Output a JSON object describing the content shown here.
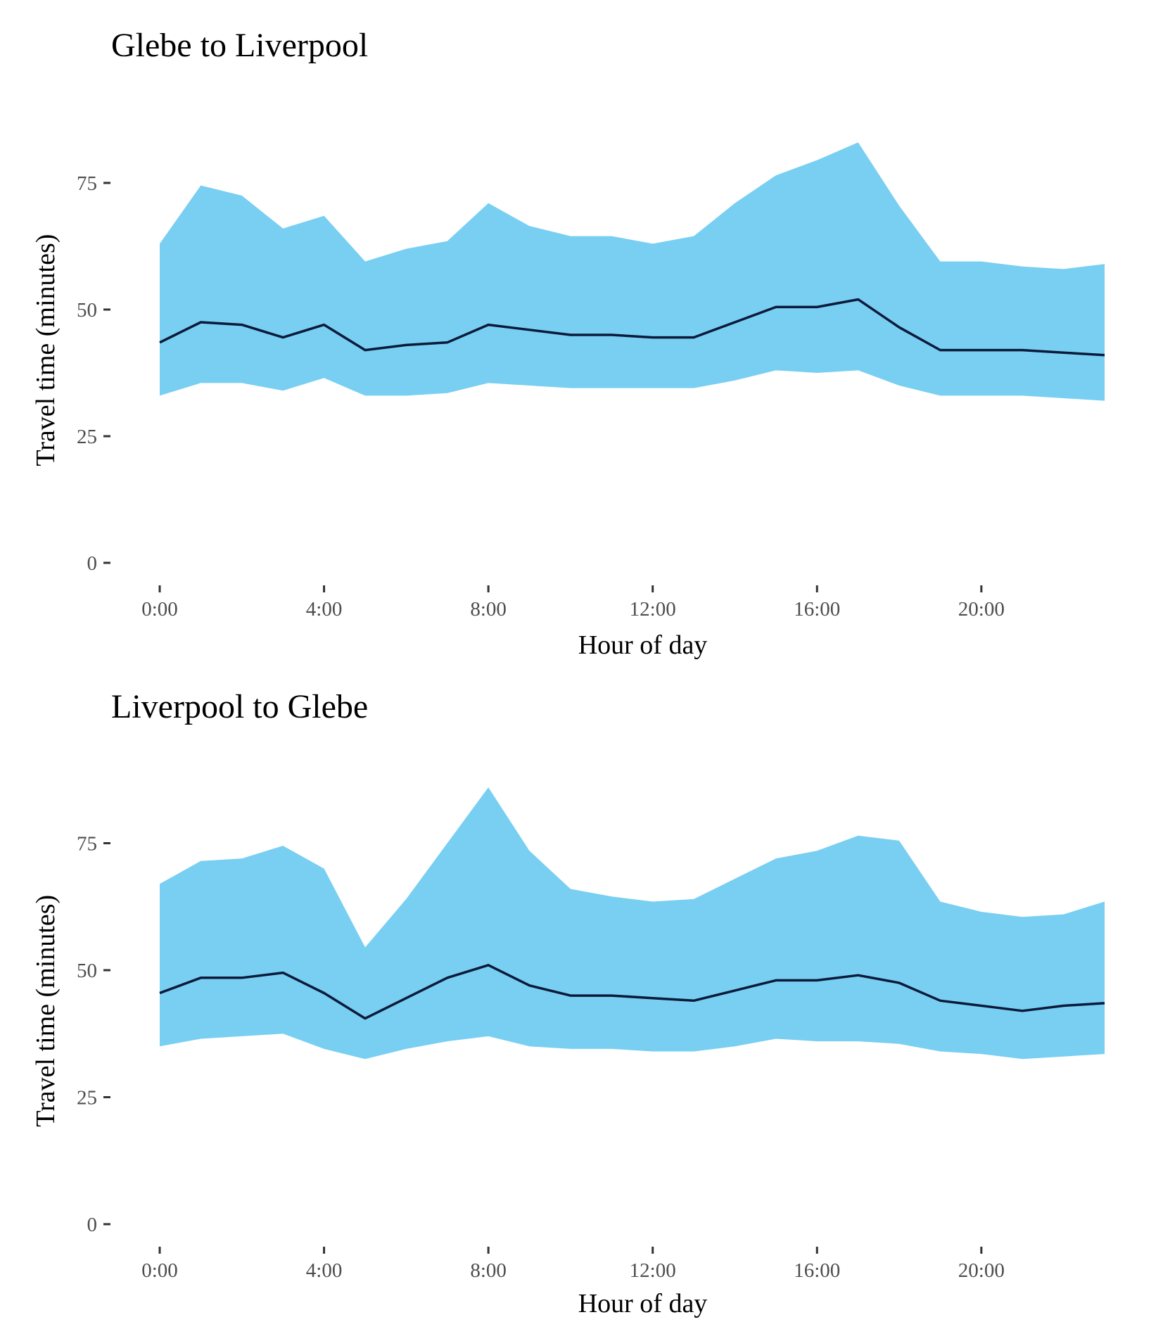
{
  "colors": {
    "band": "#78cff2",
    "line": "#0b1a3a",
    "tick": "#333333",
    "tick_label": "#4d4d4d"
  },
  "chart_data": [
    {
      "type": "area",
      "title": "Glebe to Liverpool",
      "xlabel": "Hour of day",
      "ylabel": "Travel time (minutes)",
      "x_ticks": [
        "0:00",
        "4:00",
        "8:00",
        "12:00",
        "16:00",
        "20:00"
      ],
      "y_ticks": [
        "0",
        "25",
        "50",
        "75"
      ],
      "xlim": [
        0,
        23
      ],
      "ylim": [
        0,
        85
      ],
      "grid": false,
      "x": [
        0,
        1,
        2,
        3,
        4,
        5,
        6,
        7,
        8,
        9,
        10,
        11,
        12,
        13,
        14,
        15,
        16,
        17,
        18,
        19,
        20,
        21,
        22,
        23
      ],
      "series": [
        {
          "role": "upper",
          "values": [
            63,
            74.5,
            72.5,
            66,
            68.5,
            59.5,
            62,
            63.5,
            71,
            66.5,
            64.5,
            64.5,
            63,
            64.5,
            71,
            76.5,
            79.5,
            83,
            70.5,
            59.5,
            59.5,
            58.5,
            58,
            59
          ]
        },
        {
          "role": "median",
          "values": [
            43.5,
            47.5,
            47,
            44.5,
            47,
            42,
            43,
            43.5,
            47,
            46,
            45,
            45,
            44.5,
            44.5,
            47.5,
            50.5,
            50.5,
            52,
            46.5,
            42,
            42,
            42,
            41.5,
            41
          ]
        },
        {
          "role": "lower",
          "values": [
            33,
            35.5,
            35.5,
            34,
            36.5,
            33,
            33,
            33.5,
            35.5,
            35,
            34.5,
            34.5,
            34.5,
            34.5,
            36,
            38,
            37.5,
            38,
            35,
            33,
            33,
            33,
            32.5,
            32
          ]
        }
      ]
    },
    {
      "type": "area",
      "title": "Liverpool to Glebe",
      "xlabel": "Hour of day",
      "ylabel": "Travel time (minutes)",
      "x_ticks": [
        "0:00",
        "4:00",
        "8:00",
        "12:00",
        "16:00",
        "20:00"
      ],
      "y_ticks": [
        "0",
        "25",
        "50",
        "75"
      ],
      "xlim": [
        0,
        23
      ],
      "ylim": [
        0,
        85
      ],
      "grid": false,
      "x": [
        0,
        1,
        2,
        3,
        4,
        5,
        6,
        7,
        8,
        9,
        10,
        11,
        12,
        13,
        14,
        15,
        16,
        17,
        18,
        19,
        20,
        21,
        22,
        23
      ],
      "series": [
        {
          "role": "upper",
          "values": [
            67,
            71.5,
            72,
            74.5,
            70,
            54.5,
            64,
            75,
            86,
            73.5,
            66,
            64.5,
            63.5,
            64,
            68,
            72,
            73.5,
            76.5,
            75.5,
            63.5,
            61.5,
            60.5,
            61,
            63.5
          ]
        },
        {
          "role": "median",
          "values": [
            45.5,
            48.5,
            48.5,
            49.5,
            45.5,
            40.5,
            44.5,
            48.5,
            51,
            47,
            45,
            45,
            44.5,
            44,
            46,
            48,
            48,
            49,
            47.5,
            44,
            43,
            42,
            43,
            43.5
          ]
        },
        {
          "role": "lower",
          "values": [
            35,
            36.5,
            37,
            37.5,
            34.5,
            32.5,
            34.5,
            36,
            37,
            35,
            34.5,
            34.5,
            34,
            34,
            35,
            36.5,
            36,
            36,
            35.5,
            34,
            33.5,
            32.5,
            33,
            33.5
          ]
        }
      ]
    }
  ]
}
